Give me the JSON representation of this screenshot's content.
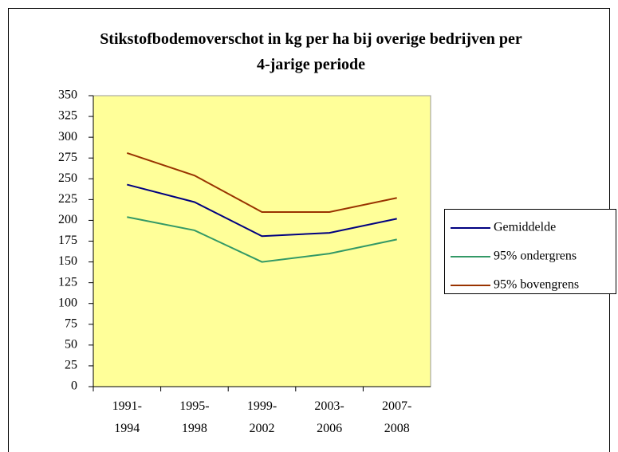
{
  "chart_data": {
    "type": "line",
    "title": "Stikstofbodemoverschot in kg per ha bij overige bedrijven per 4-jarige periode",
    "categories": [
      "1991-1994",
      "1995-1998",
      "1999-2002",
      "2003-2006",
      "2007-2008"
    ],
    "series": [
      {
        "name": "Gemiddelde",
        "color": "#000080",
        "values": [
          243,
          222,
          181,
          185,
          202
        ]
      },
      {
        "name": "95% ondergrens",
        "color": "#339966",
        "values": [
          204,
          188,
          150,
          160,
          177
        ]
      },
      {
        "name": "95% bovengrens",
        "color": "#993300",
        "values": [
          281,
          254,
          210,
          210,
          227
        ]
      }
    ],
    "ylim": [
      0,
      350
    ],
    "yticks": [
      0,
      25,
      50,
      75,
      100,
      125,
      150,
      175,
      200,
      225,
      250,
      275,
      300,
      325,
      350
    ],
    "plot_background": "#ffff99",
    "legend": "right"
  }
}
